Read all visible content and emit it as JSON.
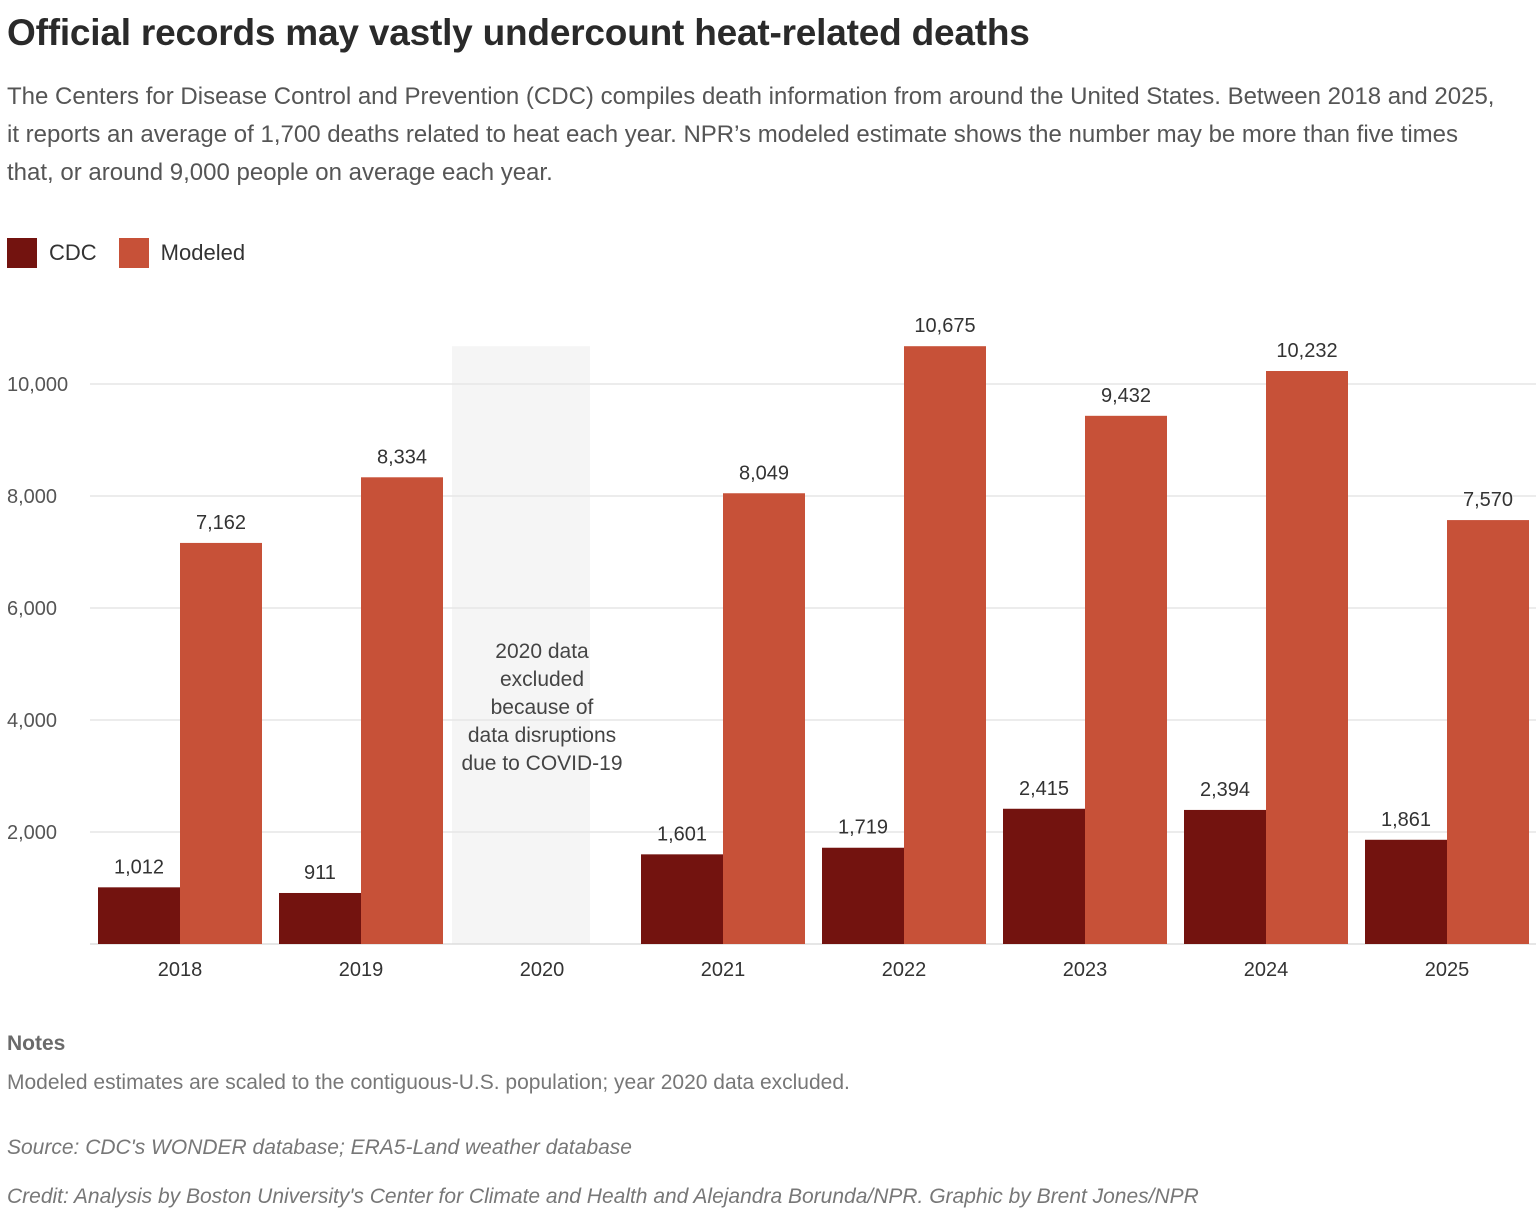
{
  "header": {
    "title": "Official records may vastly undercount heat-related deaths",
    "subtitle": "The Centers for Disease Control and Prevention (CDC) compiles death information from around the United States. Between 2018 and 2025, it reports an average of 1,700 deaths related to heat each year. NPR’s modeled estimate shows the number may be more than five times that, or around 9,000 people on average each year."
  },
  "legend": {
    "items": [
      {
        "label": "CDC",
        "color": "#73130f"
      },
      {
        "label": "Modeled",
        "color": "#c75138"
      }
    ]
  },
  "chart_data": {
    "type": "bar",
    "categories": [
      "2018",
      "2019",
      "2020",
      "2021",
      "2022",
      "2023",
      "2024",
      "2025"
    ],
    "series": [
      {
        "name": "CDC",
        "color": "#73130f",
        "values": [
          1012,
          911,
          null,
          1601,
          1719,
          2415,
          2394,
          1861
        ],
        "labels": [
          "1,012",
          "911",
          "",
          "1,601",
          "1,719",
          "2,415",
          "2,394",
          "1,861"
        ]
      },
      {
        "name": "Modeled",
        "color": "#c75138",
        "values": [
          7162,
          8334,
          null,
          8049,
          10675,
          9432,
          10232,
          7570
        ],
        "labels": [
          "7,162",
          "8,334",
          "",
          "8,049",
          "10,675",
          "9,432",
          "10,232",
          "7,570"
        ]
      }
    ],
    "yticks": [
      2000,
      4000,
      6000,
      8000,
      10000
    ],
    "ytick_labels": [
      "2,000",
      "4,000",
      "6,000",
      "8,000",
      "10,000"
    ],
    "ylim": [
      0,
      11000
    ],
    "grid": true,
    "legend_position": "top-left",
    "excluded": {
      "category": "2020",
      "annotation": [
        "2020 data",
        "excluded",
        "because of",
        "data disruptions",
        "due to COVID-19"
      ],
      "shade_color": "#f5f5f5"
    }
  },
  "footer": {
    "notes_title": "Notes",
    "notes_text": "Modeled estimates are scaled to the contiguous-U.S. population; year 2020 data excluded.",
    "source": "Source: CDC's WONDER database; ERA5-Land weather database",
    "credit": "Credit: Analysis by Boston University's Center for Climate and Health and Alejandra Borunda/NPR. Graphic by Brent Jones/NPR"
  }
}
